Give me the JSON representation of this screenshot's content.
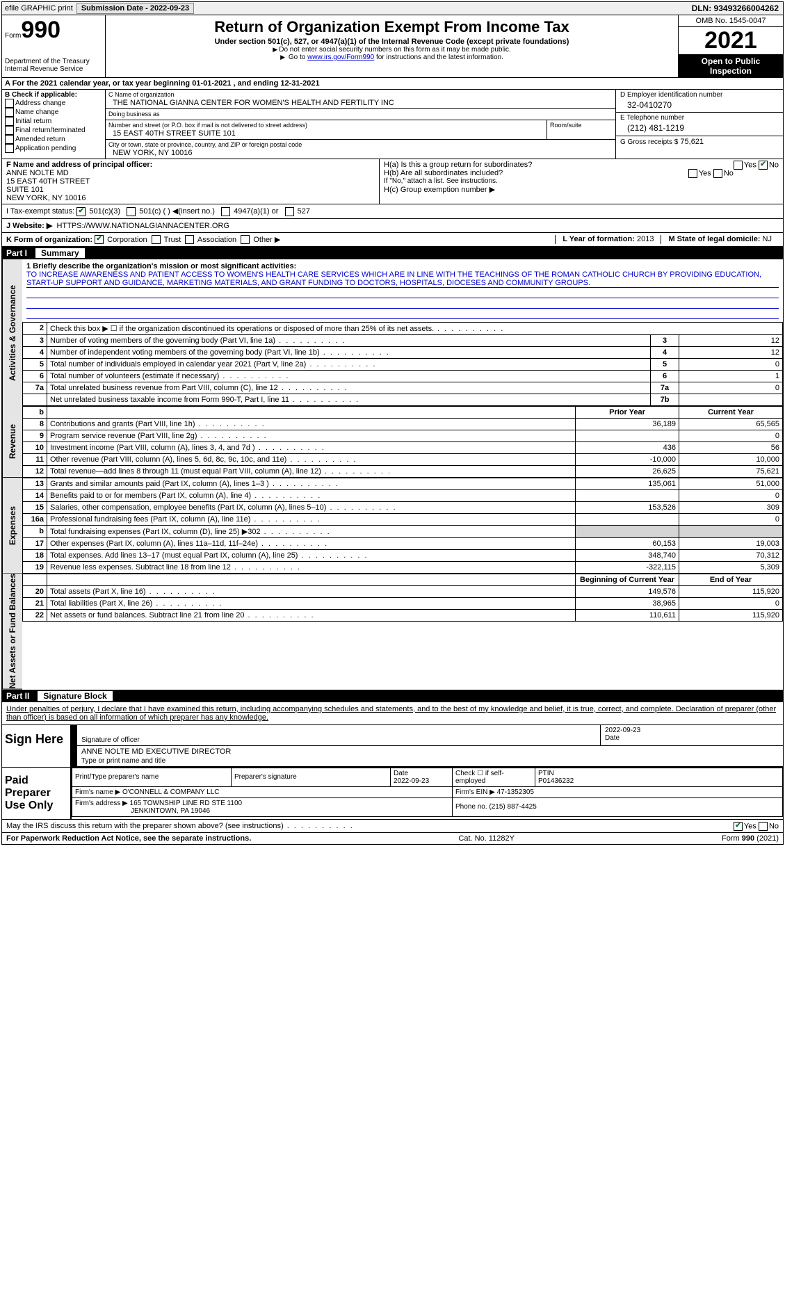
{
  "topbar": {
    "efile": "efile GRAPHIC print",
    "submission_label": "Submission Date - 2022-09-23",
    "dln": "DLN: 93493266004262"
  },
  "header": {
    "form_prefix": "Form",
    "form_number": "990",
    "dept": "Department of the Treasury",
    "irs": "Internal Revenue Service",
    "title": "Return of Organization Exempt From Income Tax",
    "subtitle": "Under section 501(c), 527, or 4947(a)(1) of the Internal Revenue Code (except private foundations)",
    "note1": "Do not enter social security numbers on this form as it may be made public.",
    "note2_a": "Go to ",
    "note2_link": "www.irs.gov/Form990",
    "note2_b": " for instructions and the latest information.",
    "omb": "OMB No. 1545-0047",
    "year": "2021",
    "open": "Open to Public Inspection"
  },
  "lineA": "A For the 2021 calendar year, or tax year beginning 01-01-2021   , and ending 12-31-2021",
  "colB": {
    "title": "B Check if applicable:",
    "items": [
      "Address change",
      "Name change",
      "Initial return",
      "Final return/terminated",
      "Amended return",
      "Application pending"
    ]
  },
  "colC": {
    "name_label": "C Name of organization",
    "name": "THE NATIONAL GIANNA CENTER FOR WOMEN'S HEALTH AND FERTILITY INC",
    "dba_label": "Doing business as",
    "dba": "",
    "addr_label": "Number and street (or P.O. box if mail is not delivered to street address)",
    "room_label": "Room/suite",
    "addr": "15 EAST 40TH STREET SUITE 101",
    "city_label": "City or town, state or province, country, and ZIP or foreign postal code",
    "city": "NEW YORK, NY  10016"
  },
  "colD": {
    "ein_label": "D Employer identification number",
    "ein": "32-0410270",
    "phone_label": "E Telephone number",
    "phone": "(212) 481-1219",
    "gross_label": "G Gross receipts $",
    "gross": "75,621"
  },
  "F": {
    "label": "F  Name and address of principal officer:",
    "name": "ANNE NOLTE MD",
    "addr1": "15 EAST 40TH STREET",
    "addr2": "SUITE 101",
    "city": "NEW YORK, NY  10016"
  },
  "H": {
    "a": "H(a)  Is this a group return for subordinates?",
    "b": "H(b)  Are all subordinates included?",
    "b_note": "If \"No,\" attach a list. See instructions.",
    "c": "H(c)  Group exemption number ▶",
    "yes": "Yes",
    "no": "No"
  },
  "status": {
    "label": "I  Tax-exempt status:",
    "o1": "501(c)(3)",
    "o2": "501(c) (  ) ◀(insert no.)",
    "o3": "4947(a)(1) or",
    "o4": "527"
  },
  "J": {
    "label": "J  Website: ▶",
    "val": "HTTPS://WWW.NATIONALGIANNACENTER.ORG"
  },
  "K": {
    "label": "K Form of organization:",
    "o1": "Corporation",
    "o2": "Trust",
    "o3": "Association",
    "o4": "Other ▶",
    "L_label": "L Year of formation:",
    "L_val": "2013",
    "M_label": "M State of legal domicile:",
    "M_val": "NJ"
  },
  "part1": {
    "num": "Part I",
    "title": "Summary"
  },
  "mission": {
    "q": "1  Briefly describe the organization's mission or most significant activities:",
    "text": "TO INCREASE AWARENESS AND PATIENT ACCESS TO WOMEN'S HEALTH CARE SERVICES WHICH ARE IN LINE WITH THE TEACHINGS OF THE ROMAN CATHOLIC CHURCH BY PROVIDING EDUCATION, START-UP SUPPORT AND GUIDANCE, MARKETING MATERIALS, AND GRANT FUNDING TO DOCTORS, HOSPITALS, DIOCESES AND COMMUNITY GROUPS."
  },
  "sidebars": {
    "ag": "Activities & Governance",
    "rev": "Revenue",
    "exp": "Expenses",
    "net": "Net Assets or Fund Balances"
  },
  "lines_ag": [
    {
      "n": "2",
      "d": "Check this box ▶ ☐  if the organization discontinued its operations or disposed of more than 25% of its net assets.",
      "c": "",
      "v": ""
    },
    {
      "n": "3",
      "d": "Number of voting members of the governing body (Part VI, line 1a)",
      "c": "3",
      "v": "12"
    },
    {
      "n": "4",
      "d": "Number of independent voting members of the governing body (Part VI, line 1b)",
      "c": "4",
      "v": "12"
    },
    {
      "n": "5",
      "d": "Total number of individuals employed in calendar year 2021 (Part V, line 2a)",
      "c": "5",
      "v": "0"
    },
    {
      "n": "6",
      "d": "Total number of volunteers (estimate if necessary)",
      "c": "6",
      "v": "1"
    },
    {
      "n": "7a",
      "d": "Total unrelated business revenue from Part VIII, column (C), line 12",
      "c": "7a",
      "v": "0"
    },
    {
      "n": "",
      "d": "Net unrelated business taxable income from Form 990-T, Part I, line 11",
      "c": "7b",
      "v": ""
    }
  ],
  "colhdr": {
    "b": "b",
    "py": "Prior Year",
    "cy": "Current Year"
  },
  "lines_rev": [
    {
      "n": "8",
      "d": "Contributions and grants (Part VIII, line 1h)",
      "p": "36,189",
      "c": "65,565"
    },
    {
      "n": "9",
      "d": "Program service revenue (Part VIII, line 2g)",
      "p": "",
      "c": "0"
    },
    {
      "n": "10",
      "d": "Investment income (Part VIII, column (A), lines 3, 4, and 7d )",
      "p": "436",
      "c": "56"
    },
    {
      "n": "11",
      "d": "Other revenue (Part VIII, column (A), lines 5, 6d, 8c, 9c, 10c, and 11e)",
      "p": "-10,000",
      "c": "10,000"
    },
    {
      "n": "12",
      "d": "Total revenue—add lines 8 through 11 (must equal Part VIII, column (A), line 12)",
      "p": "26,625",
      "c": "75,621"
    }
  ],
  "lines_exp": [
    {
      "n": "13",
      "d": "Grants and similar amounts paid (Part IX, column (A), lines 1–3 )",
      "p": "135,061",
      "c": "51,000"
    },
    {
      "n": "14",
      "d": "Benefits paid to or for members (Part IX, column (A), line 4)",
      "p": "",
      "c": "0"
    },
    {
      "n": "15",
      "d": "Salaries, other compensation, employee benefits (Part IX, column (A), lines 5–10)",
      "p": "153,526",
      "c": "309"
    },
    {
      "n": "16a",
      "d": "Professional fundraising fees (Part IX, column (A), line 11e)",
      "p": "",
      "c": "0"
    },
    {
      "n": "b",
      "d": "Total fundraising expenses (Part IX, column (D), line 25) ▶302",
      "p": "grey",
      "c": "grey"
    },
    {
      "n": "17",
      "d": "Other expenses (Part IX, column (A), lines 11a–11d, 11f–24e)",
      "p": "60,153",
      "c": "19,003"
    },
    {
      "n": "18",
      "d": "Total expenses. Add lines 13–17 (must equal Part IX, column (A), line 25)",
      "p": "348,740",
      "c": "70,312"
    },
    {
      "n": "19",
      "d": "Revenue less expenses. Subtract line 18 from line 12",
      "p": "-322,115",
      "c": "5,309"
    }
  ],
  "colhdr2": {
    "py": "Beginning of Current Year",
    "cy": "End of Year"
  },
  "lines_net": [
    {
      "n": "20",
      "d": "Total assets (Part X, line 16)",
      "p": "149,576",
      "c": "115,920"
    },
    {
      "n": "21",
      "d": "Total liabilities (Part X, line 26)",
      "p": "38,965",
      "c": "0"
    },
    {
      "n": "22",
      "d": "Net assets or fund balances. Subtract line 21 from line 20",
      "p": "110,611",
      "c": "115,920"
    }
  ],
  "part2": {
    "num": "Part II",
    "title": "Signature Block"
  },
  "sig": {
    "intro": "Under penalties of perjury, I declare that I have examined this return, including accompanying schedules and statements, and to the best of my knowledge and belief, it is true, correct, and complete. Declaration of preparer (other than officer) is based on all information of which preparer has any knowledge.",
    "sign_here": "Sign Here",
    "sig_label": "Signature of officer",
    "date_label": "Date",
    "date": "2022-09-23",
    "name": "ANNE NOLTE MD  EXECUTIVE DIRECTOR",
    "name_label": "Type or print name and title",
    "paid": "Paid Preparer Use Only",
    "p_name_label": "Print/Type preparer's name",
    "p_sig_label": "Preparer's signature",
    "p_date_label": "Date",
    "p_date": "2022-09-23",
    "p_check": "Check ☐ if self-employed",
    "ptin_label": "PTIN",
    "ptin": "P01436232",
    "firm_name_label": "Firm's name   ▶",
    "firm_name": "O'CONNELL & COMPANY LLC",
    "firm_ein_label": "Firm's EIN ▶",
    "firm_ein": "47-1352305",
    "firm_addr_label": "Firm's address ▶",
    "firm_addr1": "165 TOWNSHIP LINE RD STE 1100",
    "firm_addr2": "JENKINTOWN, PA  19046",
    "phone_label": "Phone no.",
    "phone": "(215) 887-4425",
    "discuss": "May the IRS discuss this return with the preparer shown above? (see instructions)"
  },
  "foot": {
    "l": "For Paperwork Reduction Act Notice, see the separate instructions.",
    "m": "Cat. No. 11282Y",
    "r": "Form 990 (2021)"
  }
}
